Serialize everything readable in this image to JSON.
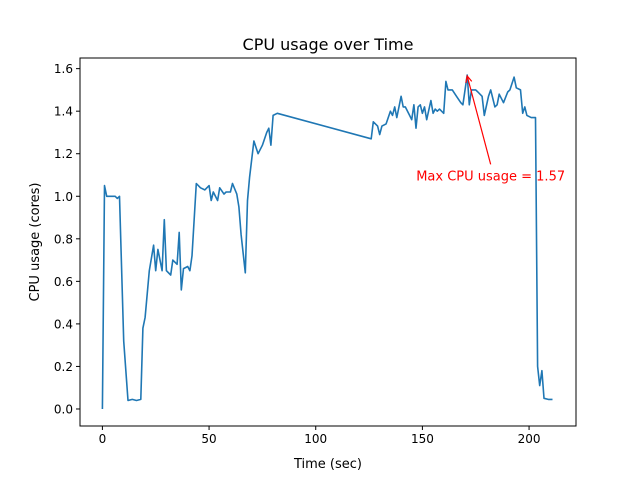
{
  "chart_data": {
    "type": "line",
    "title": "CPU usage over Time",
    "xlabel": "Time (sec)",
    "ylabel": "CPU usage (cores)",
    "xlim": [
      -10.5,
      222
    ],
    "ylim": [
      -0.08,
      1.65
    ],
    "xticks": [
      0,
      50,
      100,
      150,
      200
    ],
    "xtick_labels": [
      "0",
      "50",
      "100",
      "150",
      "200"
    ],
    "yticks": [
      0,
      0.2,
      0.4,
      0.6,
      0.8,
      1.0,
      1.2,
      1.4,
      1.6
    ],
    "ytick_labels": [
      "0.0",
      "0.2",
      "0.4",
      "0.6",
      "0.8",
      "1.0",
      "1.2",
      "1.4",
      "1.6"
    ],
    "grid": false,
    "series": [
      {
        "name": "CPU usage",
        "color": "#1f77b4",
        "x": [
          0,
          1,
          2,
          4,
          6,
          7,
          8,
          10,
          12,
          14,
          16,
          18,
          19,
          20,
          22,
          24,
          25,
          26,
          28,
          29,
          30,
          32,
          33,
          35,
          36,
          37,
          38,
          40,
          41,
          42,
          44,
          46,
          48,
          50,
          51,
          52,
          54,
          55,
          57,
          58,
          60,
          61,
          63,
          64,
          65,
          67,
          68,
          69,
          71,
          73,
          75,
          77,
          78,
          79,
          80,
          82,
          126,
          127,
          129,
          130,
          131,
          133,
          135,
          136,
          137,
          138,
          140,
          141,
          142,
          144,
          145,
          146,
          147,
          148,
          149,
          150,
          151,
          152,
          154,
          155,
          156,
          157,
          158,
          160,
          161,
          162,
          164,
          166,
          168,
          169,
          171,
          172,
          173,
          175,
          176,
          178,
          179,
          181,
          182,
          184,
          185,
          186,
          188,
          190,
          191,
          193,
          194,
          196,
          197,
          198,
          199,
          201,
          203,
          204,
          205,
          206,
          207,
          209,
          211
        ],
        "y": [
          0.0,
          1.05,
          1.0,
          1.0,
          1.0,
          0.99,
          1.0,
          0.32,
          0.04,
          0.045,
          0.04,
          0.045,
          0.38,
          0.43,
          0.65,
          0.77,
          0.65,
          0.75,
          0.65,
          0.89,
          0.65,
          0.63,
          0.7,
          0.68,
          0.83,
          0.56,
          0.66,
          0.67,
          0.65,
          0.72,
          1.06,
          1.04,
          1.03,
          1.05,
          0.98,
          1.02,
          0.98,
          1.04,
          1.01,
          1.02,
          1.02,
          1.06,
          1.01,
          0.95,
          0.82,
          0.64,
          0.98,
          1.09,
          1.26,
          1.2,
          1.24,
          1.3,
          1.32,
          1.24,
          1.38,
          1.39,
          1.27,
          1.35,
          1.33,
          1.29,
          1.33,
          1.34,
          1.4,
          1.38,
          1.42,
          1.37,
          1.47,
          1.42,
          1.42,
          1.38,
          1.36,
          1.43,
          1.32,
          1.42,
          1.43,
          1.39,
          1.42,
          1.36,
          1.45,
          1.39,
          1.41,
          1.4,
          1.41,
          1.39,
          1.54,
          1.5,
          1.5,
          1.47,
          1.44,
          1.43,
          1.57,
          1.43,
          1.5,
          1.5,
          1.49,
          1.47,
          1.38,
          1.47,
          1.5,
          1.42,
          1.43,
          1.48,
          1.44,
          1.49,
          1.5,
          1.56,
          1.51,
          1.5,
          1.39,
          1.42,
          1.38,
          1.37,
          1.37,
          0.2,
          0.11,
          0.18,
          0.05,
          0.045,
          0.045
        ]
      }
    ],
    "annotation": {
      "text": "Max CPU usage = 1.57",
      "color": "#ff0000",
      "point": [
        171,
        1.57
      ],
      "text_at": [
        182,
        1.15
      ]
    }
  }
}
